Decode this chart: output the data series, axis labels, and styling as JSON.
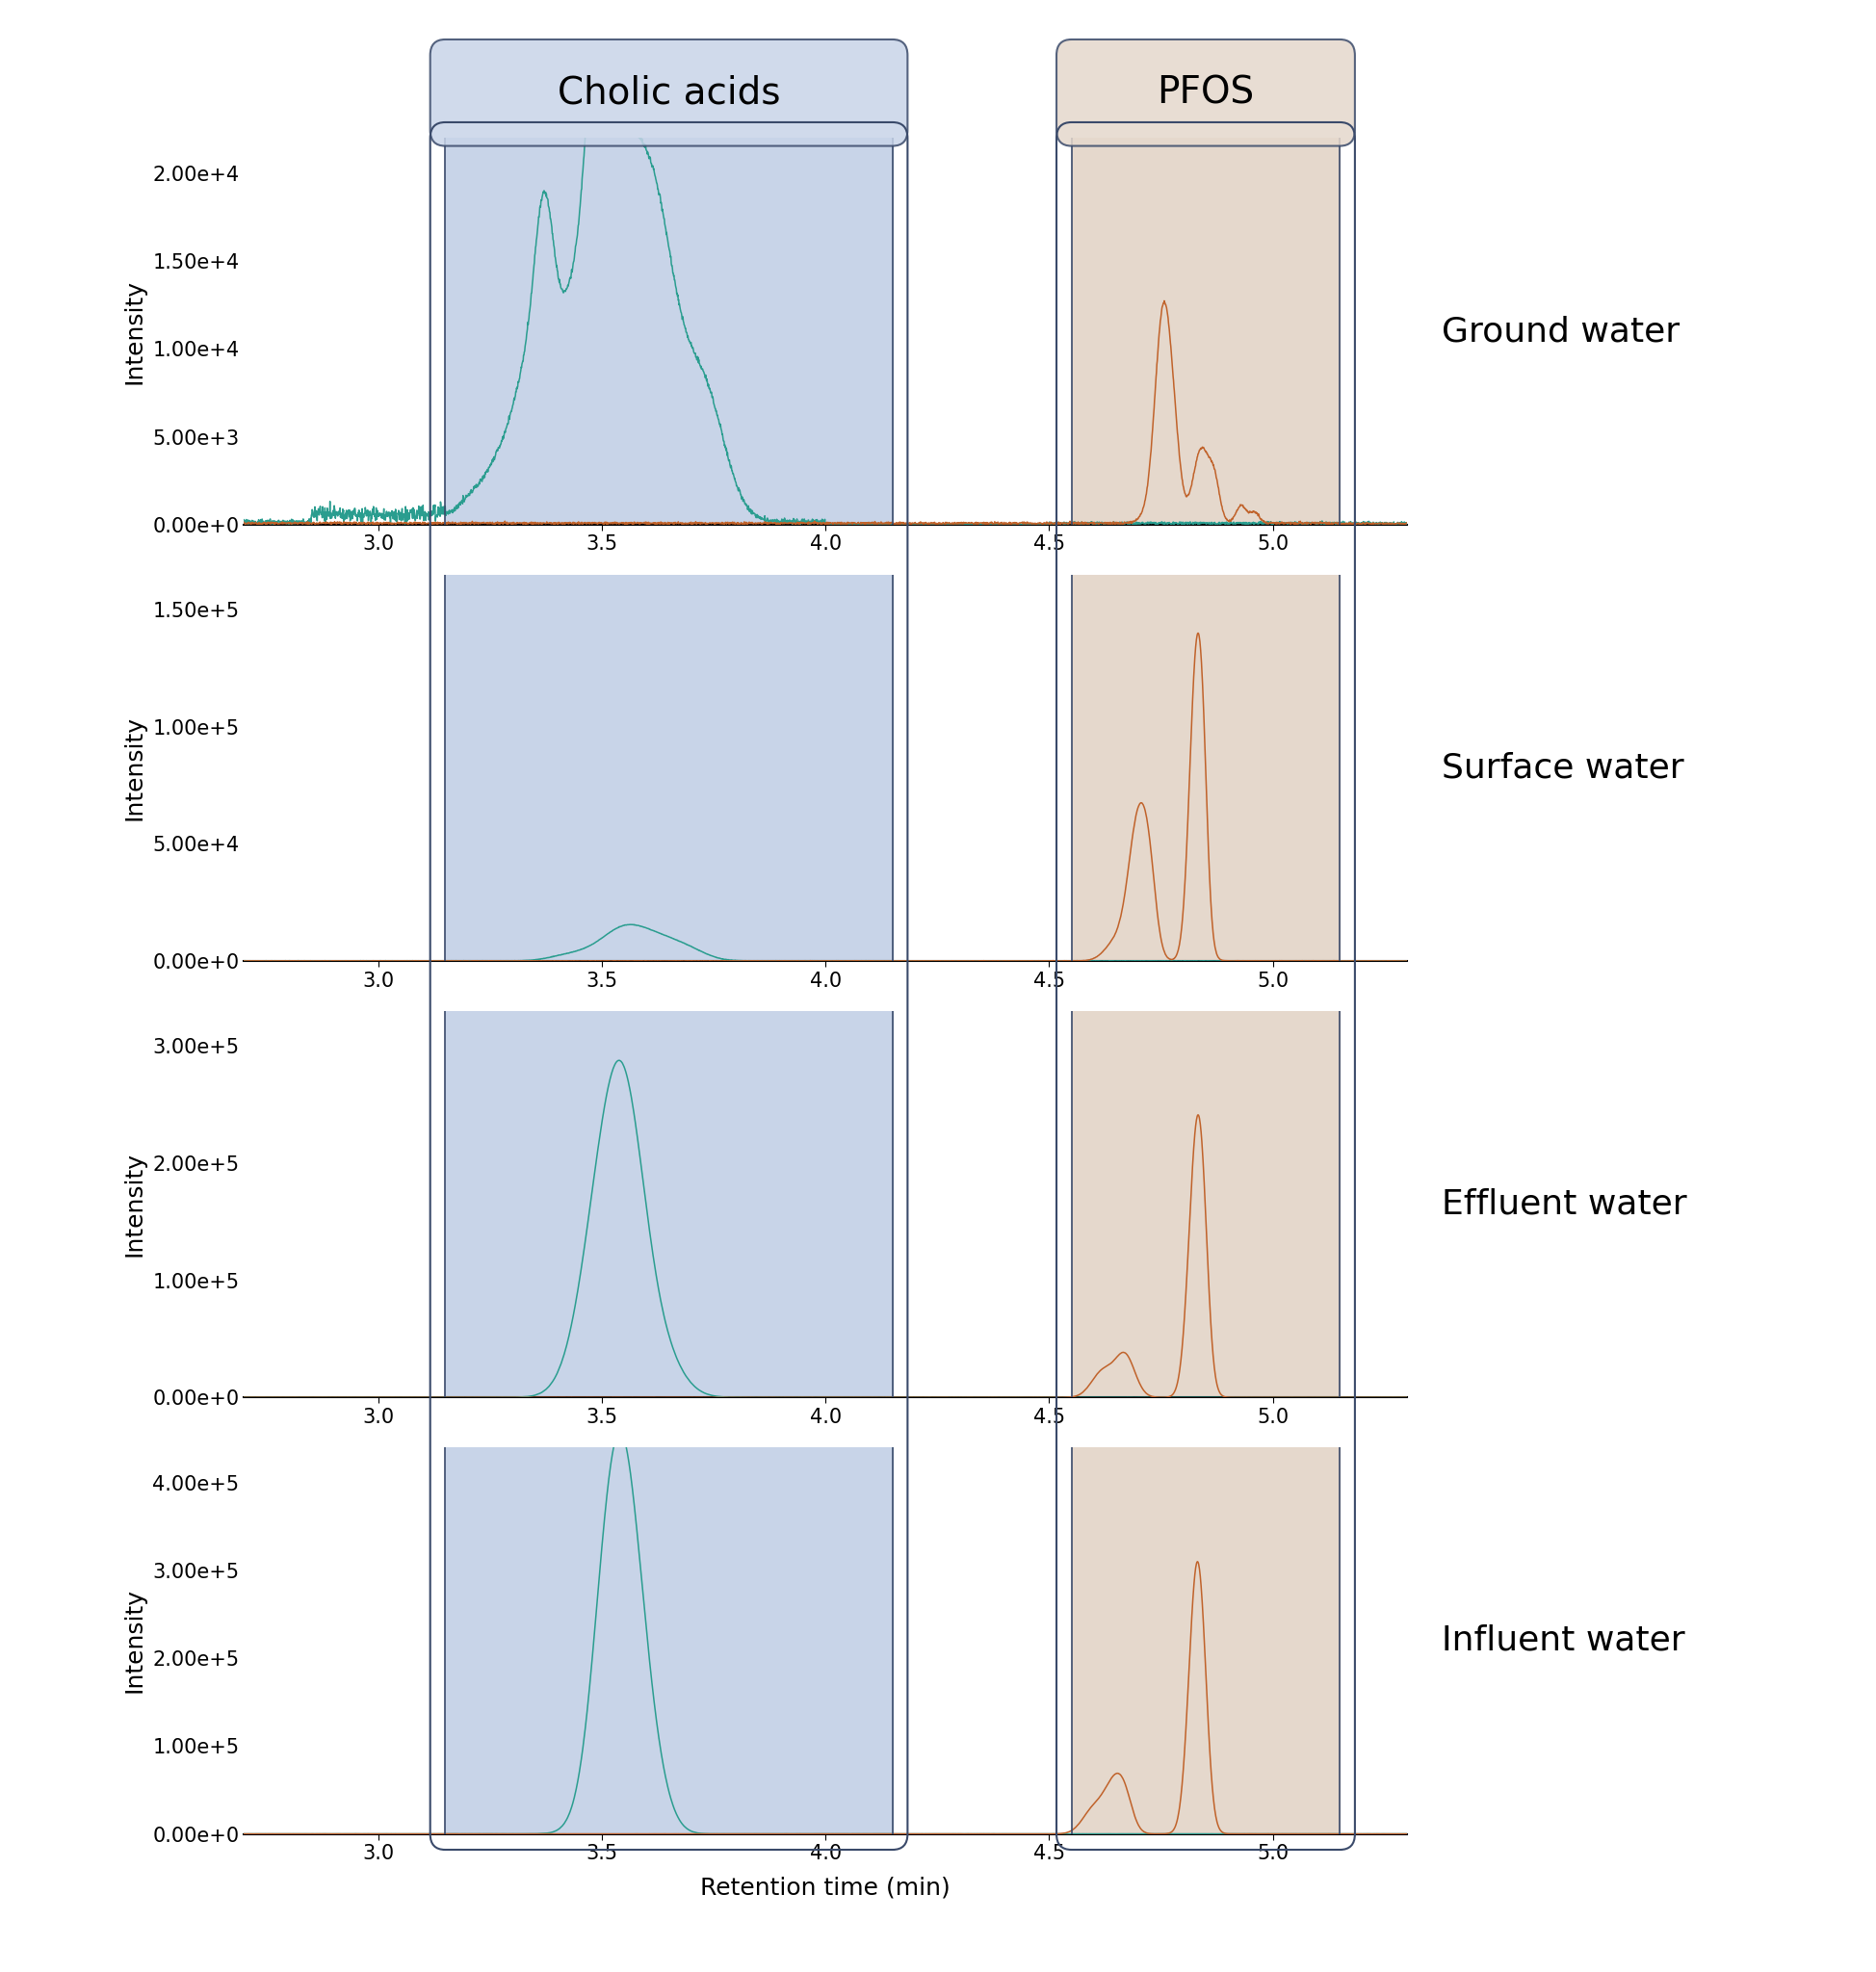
{
  "panels": [
    {
      "label": "Ground water",
      "ylim": [
        0,
        22000
      ],
      "yticks": [
        0,
        5000,
        10000,
        15000,
        20000
      ],
      "ytick_labels": [
        "0.00e+0",
        "5.00e+3",
        "1.00e+4",
        "1.50e+4",
        "2.00e+4"
      ]
    },
    {
      "label": "Surface water",
      "ylim": [
        0,
        165000
      ],
      "yticks": [
        0,
        50000,
        100000,
        150000
      ],
      "ytick_labels": [
        "0.00e+0",
        "5.00e+4",
        "1.00e+5",
        "1.50e+5"
      ]
    },
    {
      "label": "Effluent water",
      "ylim": [
        0,
        330000
      ],
      "yticks": [
        0,
        100000,
        200000,
        300000
      ],
      "ytick_labels": [
        "0.00e+0",
        "1.00e+5",
        "2.00e+5",
        "3.00e+5"
      ]
    },
    {
      "label": "Influent water",
      "ylim": [
        0,
        440000
      ],
      "yticks": [
        0,
        100000,
        200000,
        300000,
        400000
      ],
      "ytick_labels": [
        "0.00e+0",
        "1.00e+5",
        "2.00e+5",
        "3.00e+5",
        "4.00e+5"
      ]
    }
  ],
  "x_range": [
    2.7,
    5.3
  ],
  "xticks": [
    3.0,
    3.5,
    4.0,
    4.5,
    5.0
  ],
  "cholic_region": [
    3.15,
    4.15
  ],
  "pfos_region": [
    4.55,
    5.15
  ],
  "cholic_color": "#2a9d8f",
  "pfos_color": "#c0622a",
  "cholic_bg": "#c8d4e8",
  "pfos_bg": "#e5d8cc",
  "cholic_label": "Cholic acids",
  "pfos_label": "PFOS",
  "xlabel": "Retention time (min)",
  "ylabel": "Intensity",
  "background_color": "#ffffff",
  "label_fontsize": 24,
  "axis_fontsize": 18,
  "tick_fontsize": 15,
  "water_label_fontsize": 26
}
